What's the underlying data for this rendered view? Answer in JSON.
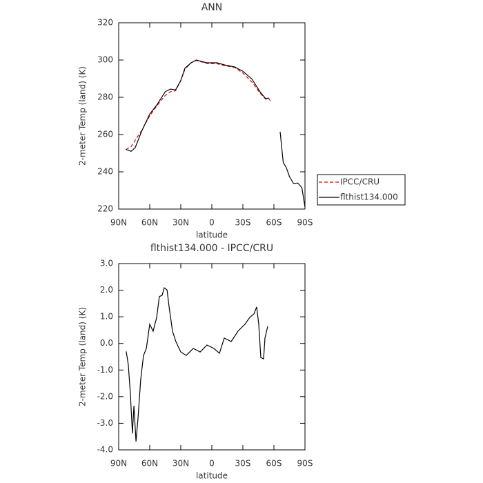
{
  "chart_data": [
    {
      "type": "line",
      "title": "ANN",
      "xlabel": "latitude",
      "ylabel": "2-meter Temp (land) (K)",
      "x": [
        83,
        78,
        74,
        68,
        60,
        53,
        45,
        40,
        35,
        30,
        26,
        20,
        15,
        10,
        5,
        -5,
        -12,
        -22,
        -30,
        -39,
        -47,
        -52,
        -55,
        -57,
        -66,
        -69,
        -72,
        -75,
        -79,
        -83,
        -87,
        -90
      ],
      "xlim": [
        90,
        -90
      ],
      "xticks": [
        {
          "value": 90,
          "label": "90N"
        },
        {
          "value": 60,
          "label": "60N"
        },
        {
          "value": 30,
          "label": "30N"
        },
        0,
        {
          "value": -30,
          "label": "30S"
        },
        {
          "value": -60,
          "label": "60S"
        },
        {
          "value": -90,
          "label": "90S"
        }
      ],
      "ylim": [
        220,
        320
      ],
      "yticks": [
        220,
        240,
        260,
        280,
        300,
        320
      ],
      "legend": "right",
      "series": [
        {
          "name": "IPCC/CRU",
          "color": "#e00000",
          "dash": true,
          "values": [
            252,
            253.5,
            257,
            262,
            270,
            275.5,
            281,
            283,
            283.5,
            289,
            295,
            298.5,
            299.8,
            299,
            298.2,
            298,
            297,
            296,
            293,
            288,
            282,
            279,
            279.5,
            277.5,
            null,
            null,
            null,
            null,
            null,
            null,
            null,
            null
          ]
        },
        {
          "name": "flthist134.000",
          "color": "#000000",
          "dash": false,
          "values": [
            252,
            251,
            253,
            261.5,
            271,
            276,
            283,
            284.4,
            284,
            289,
            295.6,
            298.5,
            300,
            299.3,
            298.5,
            298.5,
            297.4,
            296.3,
            294,
            289.6,
            282.6,
            279.3,
            279.6,
            null,
            261.5,
            245,
            242.2,
            237.4,
            233.7,
            234,
            231.5,
            221
          ]
        }
      ]
    },
    {
      "type": "line",
      "title": "flthist134.000 - IPCC/CRU",
      "xlabel": "latitude",
      "ylabel": "2-meter Temp (land) (K)",
      "x": [
        82.7,
        80.7,
        78.7,
        76.7,
        75.3,
        73.3,
        71.3,
        68.7,
        66,
        63.3,
        60,
        56.7,
        53.3,
        50.7,
        48,
        46,
        43.3,
        41.3,
        38,
        34.7,
        30,
        24.7,
        18,
        11.3,
        4.7,
        -2,
        -7.3,
        -12,
        -18.7,
        -25.3,
        -32,
        -36.7,
        -40.7,
        -43.3,
        -45.3,
        -47.3,
        -50,
        -51.3,
        -54
      ],
      "xlim": [
        90,
        -90
      ],
      "xticks": [
        {
          "value": 90,
          "label": "90N"
        },
        {
          "value": 60,
          "label": "60N"
        },
        {
          "value": 30,
          "label": "30N"
        },
        0,
        {
          "value": -30,
          "label": "30S"
        },
        {
          "value": -60,
          "label": "60S"
        },
        {
          "value": -90,
          "label": "90S"
        }
      ],
      "ylim": [
        -4,
        3
      ],
      "yticks": [
        {
          "value": -4,
          "label": "-4.0"
        },
        {
          "value": -3,
          "label": "-3.0"
        },
        {
          "value": -2,
          "label": "-2.0"
        },
        {
          "value": -1,
          "label": "-1.0"
        },
        {
          "value": 0,
          "label": "0.0"
        },
        {
          "value": 1,
          "label": "1.0"
        },
        {
          "value": 2,
          "label": "2.0"
        },
        {
          "value": 3,
          "label": "3.0"
        }
      ],
      "series": [
        {
          "color": "#000000",
          "dash": false,
          "values": [
            -0.3,
            -0.79,
            -1.87,
            -3.38,
            -2.34,
            -3.69,
            -2.78,
            -1.36,
            -0.45,
            -0.19,
            0.72,
            0.46,
            0.98,
            1.76,
            1.81,
            2.09,
            2.01,
            1.37,
            0.46,
            0.07,
            -0.32,
            -0.45,
            -0.19,
            -0.32,
            -0.06,
            -0.19,
            -0.37,
            0.2,
            0.07,
            0.46,
            0.72,
            0.98,
            1.11,
            1.37,
            0.72,
            -0.53,
            -0.58,
            0.2,
            0.64
          ]
        }
      ]
    }
  ]
}
